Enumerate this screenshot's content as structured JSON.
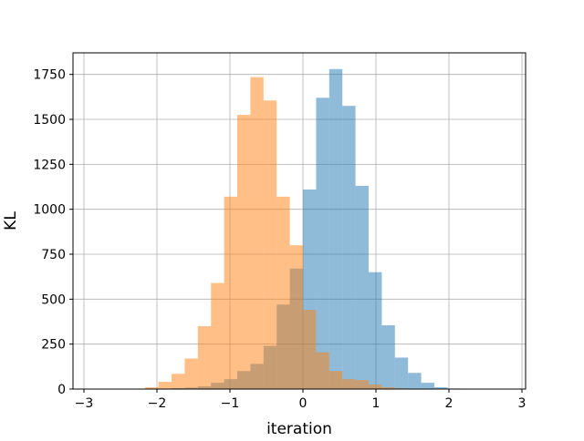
{
  "chart_data": {
    "type": "histogram",
    "xlabel": "iteration",
    "ylabel": "KL",
    "xlim": [
      -3.15,
      3.05
    ],
    "ylim": [
      0,
      1870
    ],
    "xticks": [
      -3,
      -2,
      -1,
      0,
      1,
      2,
      3
    ],
    "yticks": [
      0,
      250,
      500,
      750,
      1000,
      1250,
      1500,
      1750
    ],
    "grid": true,
    "bin_width": 0.18,
    "series": [
      {
        "color": "#1f77b4",
        "opacity": 0.5,
        "bin_start": -2.34,
        "counts": [
          1,
          2,
          3,
          5,
          8,
          15,
          35,
          55,
          100,
          140,
          240,
          470,
          670,
          1110,
          1620,
          1780,
          1575,
          1130,
          650,
          355,
          175,
          90,
          35,
          10,
          3,
          1,
          1,
          0,
          0,
          1
        ]
      },
      {
        "color": "#ff7f0e",
        "opacity": 0.5,
        "bin_start": -2.16,
        "counts": [
          10,
          40,
          85,
          170,
          350,
          590,
          1070,
          1525,
          1735,
          1605,
          1070,
          800,
          440,
          205,
          100,
          55,
          50,
          25,
          10,
          4,
          2
        ]
      }
    ]
  }
}
